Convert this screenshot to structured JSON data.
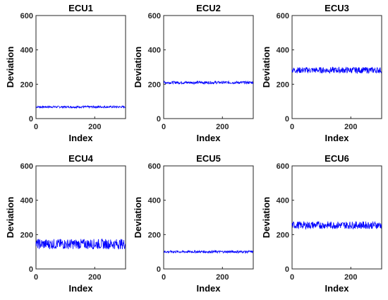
{
  "chart_data": [
    {
      "type": "line",
      "title": "ECU1",
      "xlabel": "Index",
      "ylabel": "Deviation",
      "xlim": [
        0,
        305
      ],
      "ylim": [
        0,
        600
      ],
      "xticks": [
        0,
        200
      ],
      "yticks": [
        0,
        200,
        400,
        600
      ],
      "series": [
        {
          "n": 305,
          "mean": 68,
          "amp": 6,
          "color": "#0000ff"
        }
      ]
    },
    {
      "type": "line",
      "title": "ECU2",
      "xlabel": "Index",
      "ylabel": "Deviation",
      "xlim": [
        0,
        305
      ],
      "ylim": [
        0,
        600
      ],
      "xticks": [
        0,
        200
      ],
      "yticks": [
        0,
        200,
        400,
        600
      ],
      "series": [
        {
          "n": 305,
          "mean": 210,
          "amp": 8,
          "color": "#0000ff"
        }
      ]
    },
    {
      "type": "line",
      "title": "ECU3",
      "xlabel": "Index",
      "ylabel": "Deviation",
      "xlim": [
        0,
        305
      ],
      "ylim": [
        0,
        600
      ],
      "xticks": [
        0,
        200
      ],
      "yticks": [
        0,
        200,
        400,
        600
      ],
      "series": [
        {
          "n": 305,
          "mean": 282,
          "amp": 18,
          "color": "#0000ff"
        }
      ]
    },
    {
      "type": "line",
      "title": "ECU4",
      "xlabel": "Index",
      "ylabel": "Deviation",
      "xlim": [
        0,
        305
      ],
      "ylim": [
        0,
        600
      ],
      "xticks": [
        0,
        200
      ],
      "yticks": [
        0,
        200,
        400,
        600
      ],
      "series": [
        {
          "n": 305,
          "mean": 145,
          "amp": 30,
          "color": "#0000ff"
        }
      ]
    },
    {
      "type": "line",
      "title": "ECU5",
      "xlabel": "Index",
      "ylabel": "Deviation",
      "xlim": [
        0,
        305
      ],
      "ylim": [
        0,
        600
      ],
      "xticks": [
        0,
        200
      ],
      "yticks": [
        0,
        200,
        400,
        600
      ],
      "series": [
        {
          "n": 305,
          "mean": 100,
          "amp": 7,
          "color": "#0000ff"
        }
      ]
    },
    {
      "type": "line",
      "title": "ECU6",
      "xlabel": "Index",
      "ylabel": "Deviation",
      "xlim": [
        0,
        305
      ],
      "ylim": [
        0,
        600
      ],
      "xticks": [
        0,
        200
      ],
      "yticks": [
        0,
        200,
        400,
        600
      ],
      "series": [
        {
          "n": 305,
          "mean": 255,
          "amp": 22,
          "color": "#0000ff"
        }
      ]
    }
  ]
}
